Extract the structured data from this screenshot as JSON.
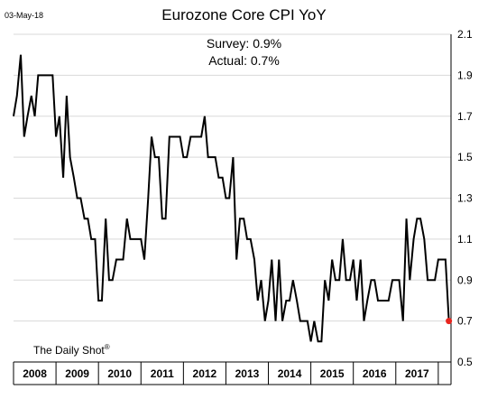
{
  "header": {
    "date_stamp": "03-May-18",
    "title": "Eurozone Core CPI YoY",
    "survey": "Survey: 0.9%",
    "actual": "Actual:  0.7%",
    "source": "The Daily Shot",
    "source_mark": "®"
  },
  "colors": {
    "line": "#000000",
    "highlight": "#e8251e",
    "grid": "#d9d9d9"
  },
  "chart_data": {
    "type": "line",
    "title": "Eurozone Core CPI YoY",
    "annotations": [
      "Survey: 0.9%",
      "Actual:  0.7%"
    ],
    "ylim": [
      0.5,
      2.1
    ],
    "yticks": [
      "0.5",
      "0.7",
      "0.9",
      "1.1",
      "1.3",
      "1.5",
      "1.7",
      "1.9",
      "2.1"
    ],
    "xlim": [
      2008.0,
      2018.3
    ],
    "years": [
      "2008",
      "2009",
      "2010",
      "2011",
      "2012",
      "2013",
      "2014",
      "2015",
      "2016",
      "2017"
    ],
    "grid": "horizontal",
    "series": [
      {
        "values": [
          [
            2008.0,
            1.7
          ],
          [
            2008.08,
            1.8
          ],
          [
            2008.17,
            2.0
          ],
          [
            2008.25,
            1.6
          ],
          [
            2008.33,
            1.7
          ],
          [
            2008.42,
            1.8
          ],
          [
            2008.5,
            1.7
          ],
          [
            2008.58,
            1.9
          ],
          [
            2008.67,
            1.9
          ],
          [
            2008.75,
            1.9
          ],
          [
            2008.83,
            1.9
          ],
          [
            2008.92,
            1.9
          ],
          [
            2009.0,
            1.6
          ],
          [
            2009.08,
            1.7
          ],
          [
            2009.17,
            1.4
          ],
          [
            2009.25,
            1.8
          ],
          [
            2009.33,
            1.5
          ],
          [
            2009.42,
            1.4
          ],
          [
            2009.5,
            1.3
          ],
          [
            2009.58,
            1.3
          ],
          [
            2009.67,
            1.2
          ],
          [
            2009.75,
            1.2
          ],
          [
            2009.83,
            1.1
          ],
          [
            2009.92,
            1.1
          ],
          [
            2010.0,
            0.8
          ],
          [
            2010.08,
            0.8
          ],
          [
            2010.17,
            1.2
          ],
          [
            2010.25,
            0.9
          ],
          [
            2010.33,
            0.9
          ],
          [
            2010.42,
            1.0
          ],
          [
            2010.5,
            1.0
          ],
          [
            2010.58,
            1.0
          ],
          [
            2010.67,
            1.2
          ],
          [
            2010.75,
            1.1
          ],
          [
            2010.83,
            1.1
          ],
          [
            2010.92,
            1.1
          ],
          [
            2011.0,
            1.1
          ],
          [
            2011.08,
            1.0
          ],
          [
            2011.17,
            1.3
          ],
          [
            2011.25,
            1.6
          ],
          [
            2011.33,
            1.5
          ],
          [
            2011.42,
            1.5
          ],
          [
            2011.5,
            1.2
          ],
          [
            2011.58,
            1.2
          ],
          [
            2011.67,
            1.6
          ],
          [
            2011.75,
            1.6
          ],
          [
            2011.83,
            1.6
          ],
          [
            2011.92,
            1.6
          ],
          [
            2012.0,
            1.5
          ],
          [
            2012.08,
            1.5
          ],
          [
            2012.17,
            1.6
          ],
          [
            2012.25,
            1.6
          ],
          [
            2012.33,
            1.6
          ],
          [
            2012.42,
            1.6
          ],
          [
            2012.5,
            1.7
          ],
          [
            2012.58,
            1.5
          ],
          [
            2012.67,
            1.5
          ],
          [
            2012.75,
            1.5
          ],
          [
            2012.83,
            1.4
          ],
          [
            2012.92,
            1.4
          ],
          [
            2013.0,
            1.3
          ],
          [
            2013.08,
            1.3
          ],
          [
            2013.17,
            1.5
          ],
          [
            2013.25,
            1.0
          ],
          [
            2013.33,
            1.2
          ],
          [
            2013.42,
            1.2
          ],
          [
            2013.5,
            1.1
          ],
          [
            2013.58,
            1.1
          ],
          [
            2013.67,
            1.0
          ],
          [
            2013.75,
            0.8
          ],
          [
            2013.83,
            0.9
          ],
          [
            2013.92,
            0.7
          ],
          [
            2014.0,
            0.8
          ],
          [
            2014.08,
            1.0
          ],
          [
            2014.17,
            0.7
          ],
          [
            2014.25,
            1.0
          ],
          [
            2014.33,
            0.7
          ],
          [
            2014.42,
            0.8
          ],
          [
            2014.5,
            0.8
          ],
          [
            2014.58,
            0.9
          ],
          [
            2014.67,
            0.8
          ],
          [
            2014.75,
            0.7
          ],
          [
            2014.83,
            0.7
          ],
          [
            2014.92,
            0.7
          ],
          [
            2015.0,
            0.6
          ],
          [
            2015.08,
            0.7
          ],
          [
            2015.17,
            0.6
          ],
          [
            2015.25,
            0.6
          ],
          [
            2015.33,
            0.9
          ],
          [
            2015.42,
            0.8
          ],
          [
            2015.5,
            1.0
          ],
          [
            2015.58,
            0.9
          ],
          [
            2015.67,
            0.9
          ],
          [
            2015.75,
            1.1
          ],
          [
            2015.83,
            0.9
          ],
          [
            2015.92,
            0.9
          ],
          [
            2016.0,
            1.0
          ],
          [
            2016.08,
            0.8
          ],
          [
            2016.17,
            1.0
          ],
          [
            2016.25,
            0.7
          ],
          [
            2016.33,
            0.8
          ],
          [
            2016.42,
            0.9
          ],
          [
            2016.5,
            0.9
          ],
          [
            2016.58,
            0.8
          ],
          [
            2016.67,
            0.8
          ],
          [
            2016.75,
            0.8
          ],
          [
            2016.83,
            0.8
          ],
          [
            2016.92,
            0.9
          ],
          [
            2017.0,
            0.9
          ],
          [
            2017.08,
            0.9
          ],
          [
            2017.17,
            0.7
          ],
          [
            2017.25,
            1.2
          ],
          [
            2017.33,
            0.9
          ],
          [
            2017.42,
            1.1
          ],
          [
            2017.5,
            1.2
          ],
          [
            2017.58,
            1.2
          ],
          [
            2017.67,
            1.1
          ],
          [
            2017.75,
            0.9
          ],
          [
            2017.83,
            0.9
          ],
          [
            2017.92,
            0.9
          ],
          [
            2018.0,
            1.0
          ],
          [
            2018.08,
            1.0
          ],
          [
            2018.17,
            1.0
          ],
          [
            2018.25,
            0.7
          ]
        ]
      }
    ],
    "highlight_point": [
      2018.25,
      0.7
    ]
  }
}
